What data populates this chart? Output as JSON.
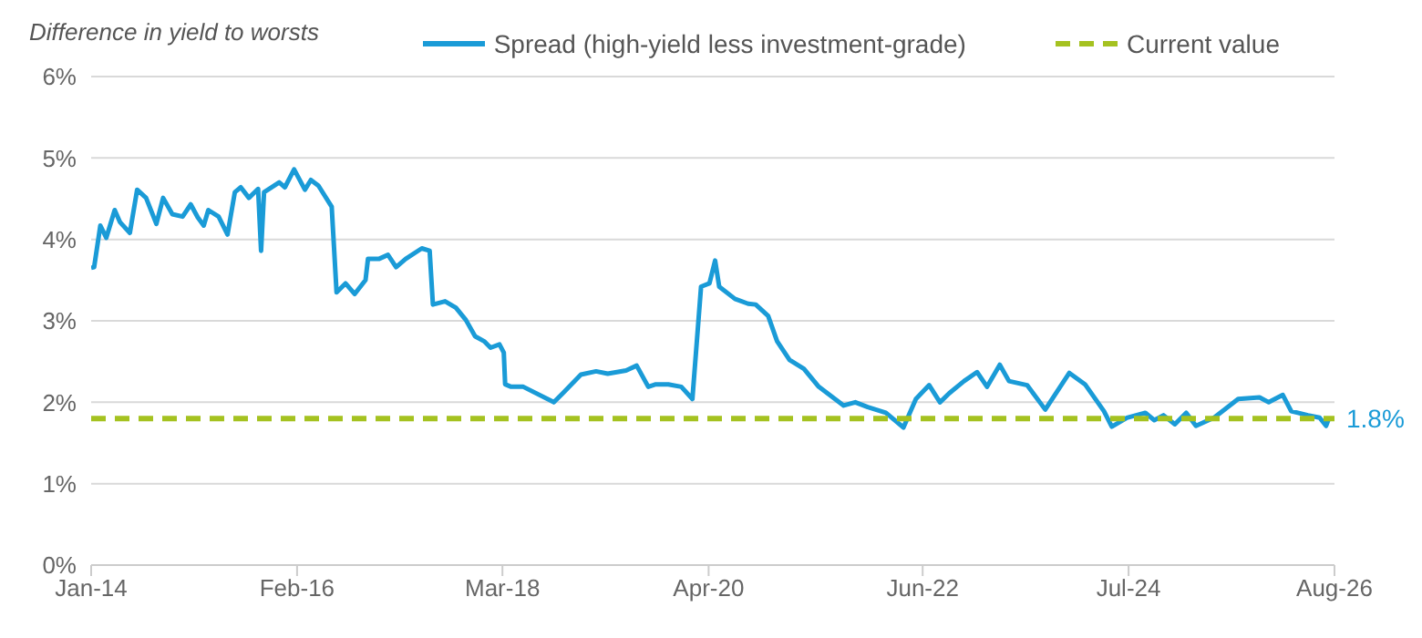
{
  "chart_data": {
    "type": "line",
    "ylabel": "Difference in yield to worsts",
    "xlim": [
      "2014-01",
      "2026-08"
    ],
    "xticks": [
      {
        "value": "2014-01",
        "label": "Jan-14"
      },
      {
        "value": "2016-02",
        "label": "Feb-16"
      },
      {
        "value": "2018-03",
        "label": "Mar-18"
      },
      {
        "value": "2020-04",
        "label": "Apr-20"
      },
      {
        "value": "2022-06",
        "label": "Jun-22"
      },
      {
        "value": "2024-07",
        "label": "Jul-24"
      },
      {
        "value": "2026-08",
        "label": "Aug-26"
      }
    ],
    "ylim": [
      0,
      6
    ],
    "yticks": [
      {
        "value": 0,
        "label": "0%"
      },
      {
        "value": 1,
        "label": "1%"
      },
      {
        "value": 2,
        "label": "2%"
      },
      {
        "value": 3,
        "label": "3%"
      },
      {
        "value": 4,
        "label": "4%"
      },
      {
        "value": 5,
        "label": "5%"
      },
      {
        "value": 6,
        "label": "6%"
      }
    ],
    "grid": "y",
    "legend": "top right",
    "series": [
      {
        "name": "Spread (high-yield less investment-grade)",
        "color": "#1a9bd7",
        "line_style": "solid",
        "x": [
          "2014-01-01",
          "2014-01-12",
          "2014-02-04",
          "2014-02-26",
          "2014-03-29",
          "2014-04-18",
          "2014-05-24",
          "2014-06-20",
          "2014-07-23",
          "2014-08-30",
          "2014-09-24",
          "2014-10-28",
          "2014-12-05",
          "2015-01-04",
          "2015-01-30",
          "2015-02-21",
          "2015-03-10",
          "2015-04-17",
          "2015-05-20",
          "2015-06-16",
          "2015-07-08",
          "2015-08-07",
          "2015-09-10",
          "2015-09-21",
          "2015-10-02",
          "2015-11-27",
          "2015-12-18",
          "2016-01-21",
          "2016-03-01",
          "2016-03-23",
          "2016-04-20",
          "2016-06-08",
          "2016-06-26",
          "2016-07-29",
          "2016-09-01",
          "2016-10-11",
          "2016-10-20",
          "2016-11-29",
          "2017-01-02",
          "2017-02-01",
          "2017-03-08",
          "2017-05-07",
          "2017-06-05",
          "2017-06-17",
          "2017-08-01",
          "2017-09-10",
          "2017-10-17",
          "2017-11-20",
          "2017-12-23",
          "2018-01-16",
          "2018-02-18",
          "2018-03-06",
          "2018-03-11",
          "2018-04-02",
          "2018-05-17",
          "2018-09-07",
          "2018-10-10",
          "2018-12-16",
          "2019-02-10",
          "2019-03-25",
          "2019-06-01",
          "2019-07-10",
          "2019-08-22",
          "2019-09-19",
          "2019-11-04",
          "2019-12-22",
          "2020-02-01",
          "2020-03-04",
          "2020-04-04",
          "2020-04-25",
          "2020-05-10",
          "2020-07-07",
          "2020-08-25",
          "2020-09-22",
          "2020-11-07",
          "2020-12-10",
          "2021-01-25",
          "2021-03-19",
          "2021-05-13",
          "2021-08-13",
          "2021-09-25",
          "2021-11-10",
          "2022-01-16",
          "2022-03-22",
          "2022-05-07",
          "2022-06-25",
          "2022-08-04",
          "2022-09-07",
          "2022-11-01",
          "2022-12-19",
          "2023-01-25",
          "2023-03-13",
          "2023-04-16",
          "2023-06-22",
          "2023-08-28",
          "2023-11-25",
          "2024-01-22",
          "2024-04-01",
          "2024-04-30",
          "2024-06-25",
          "2024-09-01",
          "2024-10-04",
          "2024-11-07",
          "2024-12-19",
          "2025-01-30",
          "2025-03-07",
          "2025-05-13",
          "2025-08-10",
          "2025-10-28",
          "2025-12-01",
          "2026-01-22",
          "2026-02-22",
          "2026-04-25",
          "2026-06-07",
          "2026-07-01",
          "2026-07-10"
        ],
        "values": [
          3.65,
          3.66,
          4.17,
          4.02,
          4.36,
          4.21,
          4.08,
          4.61,
          4.51,
          4.19,
          4.51,
          4.31,
          4.28,
          4.43,
          4.27,
          4.17,
          4.36,
          4.28,
          4.06,
          4.58,
          4.64,
          4.51,
          4.62,
          3.86,
          4.58,
          4.7,
          4.64,
          4.86,
          4.61,
          4.73,
          4.66,
          4.4,
          3.35,
          3.46,
          3.33,
          3.5,
          3.76,
          3.76,
          3.81,
          3.66,
          3.76,
          3.89,
          3.86,
          3.2,
          3.24,
          3.16,
          3.01,
          2.81,
          2.75,
          2.67,
          2.71,
          2.61,
          2.22,
          2.19,
          2.19,
          2.0,
          2.11,
          2.34,
          2.38,
          2.35,
          2.39,
          2.45,
          2.19,
          2.22,
          2.22,
          2.19,
          2.04,
          3.42,
          3.46,
          3.74,
          3.42,
          3.27,
          3.21,
          3.2,
          3.06,
          2.75,
          2.52,
          2.41,
          2.19,
          1.96,
          2.0,
          1.94,
          1.87,
          1.69,
          2.04,
          2.21,
          2.0,
          2.11,
          2.26,
          2.37,
          2.19,
          2.46,
          2.26,
          2.21,
          1.91,
          2.36,
          2.22,
          1.89,
          1.7,
          1.81,
          1.87,
          1.78,
          1.84,
          1.73,
          1.87,
          1.71,
          1.81,
          2.04,
          2.06,
          2.0,
          2.09,
          1.89,
          1.84,
          1.81,
          1.71,
          1.79
        ]
      },
      {
        "name": "Current value",
        "color": "#a5c220",
        "line_style": "dashed",
        "x": [
          "2014-01-01",
          "2026-08-01"
        ],
        "values": [
          1.8,
          1.8
        ]
      }
    ],
    "annotations": [
      {
        "text": "1.8%",
        "x": "2026-08-01",
        "y": 1.8
      }
    ]
  }
}
